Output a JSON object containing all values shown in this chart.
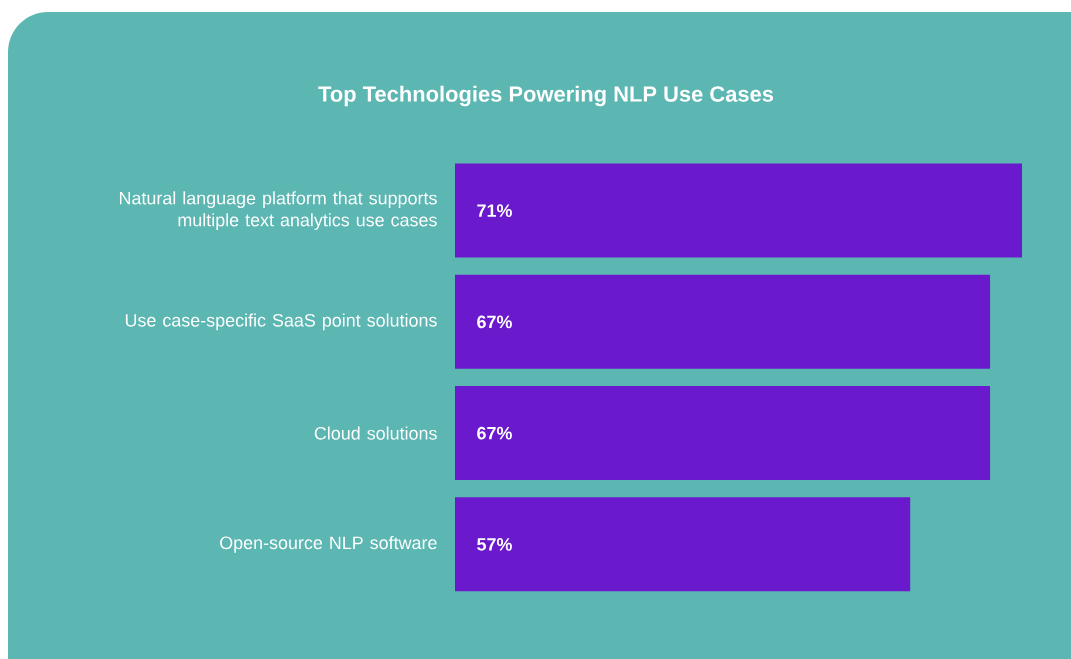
{
  "chart_data": {
    "type": "bar",
    "orientation": "horizontal",
    "title": "Top Technologies Powering NLP Use Cases",
    "categories": [
      "Natural language platform that supports multiple text analytics use cases",
      "Use case-specific SaaS point solutions",
      "Cloud solutions",
      "Open-source NLP software"
    ],
    "values": [
      71,
      67,
      67,
      57
    ],
    "value_labels": [
      "71%",
      "67%",
      "67%",
      "57%"
    ],
    "color": "#6a19cc"
  }
}
